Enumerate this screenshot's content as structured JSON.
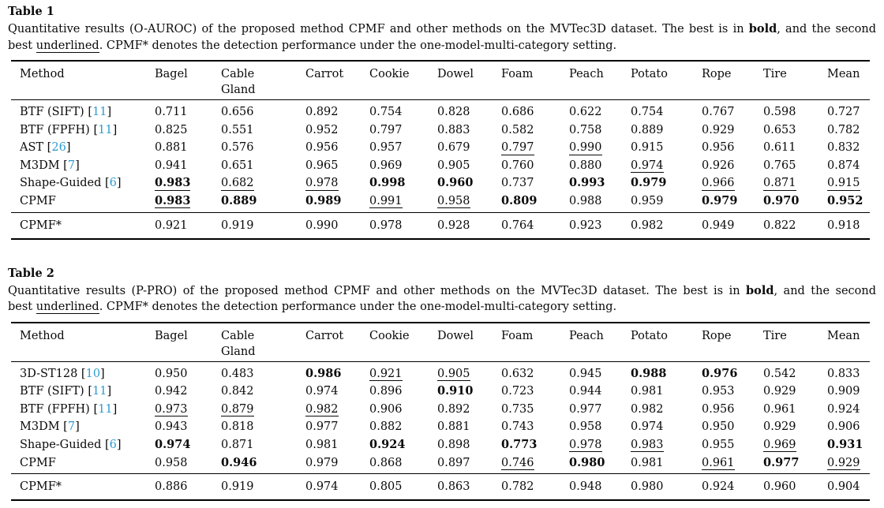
{
  "citation_color": "#2e9bd1",
  "tables": [
    {
      "label": "Table 1",
      "caption": {
        "line1": {
          "pre": "Quantitative results (O-AUROC) of the proposed method CPMF and other methods on the MVTec3D dataset. The best is in ",
          "bold": "bold",
          "post": ", and the second"
        },
        "line2": {
          "pre": "best ",
          "underline": "underlined",
          "post": ". CPMF* denotes the detection performance under the one-model-multi-category setting."
        }
      },
      "columns": [
        "Method",
        "Bagel",
        "Cable\nGland",
        "Carrot",
        "Cookie",
        "Dowel",
        "Foam",
        "Peach",
        "Potato",
        "Rope",
        "Tire",
        "Mean"
      ],
      "rows": [
        {
          "method": "BTF (SIFT)",
          "cite": "11",
          "cells": [
            "0.711",
            "0.656",
            "0.892",
            "0.754",
            "0.828",
            "0.686",
            "0.622",
            "0.754",
            "0.767",
            "0.598",
            "0.727"
          ]
        },
        {
          "method": "BTF (FPFH)",
          "cite": "11",
          "cells": [
            "0.825",
            "0.551",
            "0.952",
            "0.797",
            "0.883",
            "0.582",
            "0.758",
            "0.889",
            "0.929",
            "0.653",
            "0.782"
          ]
        },
        {
          "method": "AST",
          "cite": "26",
          "cells": [
            "0.881",
            "0.576",
            "0.956",
            "0.957",
            "0.679",
            {
              "v": "0.797",
              "u": true
            },
            {
              "v": "0.990",
              "u": true
            },
            "0.915",
            "0.956",
            "0.611",
            "0.832"
          ]
        },
        {
          "method": "M3DM",
          "cite": "7",
          "cells": [
            "0.941",
            "0.651",
            "0.965",
            "0.969",
            "0.905",
            "0.760",
            "0.880",
            {
              "v": "0.974",
              "u": true
            },
            "0.926",
            "0.765",
            "0.874"
          ]
        },
        {
          "method": "Shape-Guided",
          "cite": "6",
          "cells": [
            {
              "v": "0.983",
              "b": true,
              "u": true
            },
            {
              "v": "0.682",
              "u": true
            },
            {
              "v": "0.978",
              "u": true
            },
            {
              "v": "0.998",
              "b": true
            },
            {
              "v": "0.960",
              "b": true
            },
            "0.737",
            {
              "v": "0.993",
              "b": true
            },
            {
              "v": "0.979",
              "b": true
            },
            {
              "v": "0.966",
              "u": true
            },
            {
              "v": "0.871",
              "u": true
            },
            {
              "v": "0.915",
              "u": true
            }
          ]
        },
        {
          "method": "CPMF",
          "cite": null,
          "cells": [
            {
              "v": "0.983",
              "b": true,
              "u": true
            },
            {
              "v": "0.889",
              "b": true
            },
            {
              "v": "0.989",
              "b": true
            },
            {
              "v": "0.991",
              "u": true
            },
            {
              "v": "0.958",
              "u": true
            },
            {
              "v": "0.809",
              "b": true
            },
            "0.988",
            "0.959",
            {
              "v": "0.979",
              "b": true
            },
            {
              "v": "0.970",
              "b": true
            },
            {
              "v": "0.952",
              "b": true
            }
          ]
        }
      ],
      "footer_row": {
        "method": "CPMF*",
        "cite": null,
        "cells": [
          "0.921",
          "0.919",
          "0.990",
          "0.978",
          "0.928",
          "0.764",
          "0.923",
          "0.982",
          "0.949",
          "0.822",
          "0.918"
        ]
      }
    },
    {
      "label": "Table 2",
      "caption": {
        "line1": {
          "pre": "Quantitative results (P-PRO) of the proposed method CPMF and other methods on the MVTec3D dataset. The best is in ",
          "bold": "bold",
          "post": ", and the second"
        },
        "line2": {
          "pre": "best ",
          "underline": "underlined",
          "post": ". CPMF* denotes the detection performance under the one-model-multi-category setting."
        }
      },
      "columns": [
        "Method",
        "Bagel",
        "Cable\nGland",
        "Carrot",
        "Cookie",
        "Dowel",
        "Foam",
        "Peach",
        "Potato",
        "Rope",
        "Tire",
        "Mean"
      ],
      "rows": [
        {
          "method": "3D-ST128",
          "cite": "10",
          "cells": [
            "0.950",
            "0.483",
            {
              "v": "0.986",
              "b": true
            },
            {
              "v": "0.921",
              "u": true
            },
            {
              "v": "0.905",
              "u": true
            },
            "0.632",
            "0.945",
            {
              "v": "0.988",
              "b": true
            },
            {
              "v": "0.976",
              "b": true
            },
            "0.542",
            "0.833"
          ]
        },
        {
          "method": "BTF (SIFT)",
          "cite": "11",
          "cells": [
            "0.942",
            "0.842",
            "0.974",
            "0.896",
            {
              "v": "0.910",
              "b": true
            },
            "0.723",
            "0.944",
            "0.981",
            "0.953",
            "0.929",
            "0.909"
          ]
        },
        {
          "method": "BTF (FPFH)",
          "cite": "11",
          "cells": [
            {
              "v": "0.973",
              "u": true
            },
            {
              "v": "0.879",
              "u": true
            },
            {
              "v": "0.982",
              "u": true
            },
            "0.906",
            "0.892",
            "0.735",
            "0.977",
            "0.982",
            "0.956",
            "0.961",
            "0.924"
          ]
        },
        {
          "method": "M3DM",
          "cite": "7",
          "cells": [
            "0.943",
            "0.818",
            "0.977",
            "0.882",
            "0.881",
            "0.743",
            "0.958",
            "0.974",
            "0.950",
            "0.929",
            "0.906"
          ]
        },
        {
          "method": "Shape-Guided",
          "cite": "6",
          "cells": [
            {
              "v": "0.974",
              "b": true
            },
            "0.871",
            "0.981",
            {
              "v": "0.924",
              "b": true
            },
            "0.898",
            {
              "v": "0.773",
              "b": true
            },
            {
              "v": "0.978",
              "u": true
            },
            {
              "v": "0.983",
              "u": true
            },
            "0.955",
            {
              "v": "0.969",
              "u": true
            },
            {
              "v": "0.931",
              "b": true
            }
          ]
        },
        {
          "method": "CPMF",
          "cite": null,
          "cells": [
            "0.958",
            {
              "v": "0.946",
              "b": true
            },
            "0.979",
            "0.868",
            "0.897",
            {
              "v": "0.746",
              "u": true
            },
            {
              "v": "0.980",
              "b": true
            },
            "0.981",
            {
              "v": "0.961",
              "u": true
            },
            {
              "v": "0.977",
              "b": true
            },
            {
              "v": "0.929",
              "u": true
            }
          ]
        }
      ],
      "footer_row": {
        "method": "CPMF*",
        "cite": null,
        "cells": [
          "0.886",
          "0.919",
          "0.974",
          "0.805",
          "0.863",
          "0.782",
          "0.948",
          "0.980",
          "0.924",
          "0.960",
          "0.904"
        ]
      }
    }
  ]
}
